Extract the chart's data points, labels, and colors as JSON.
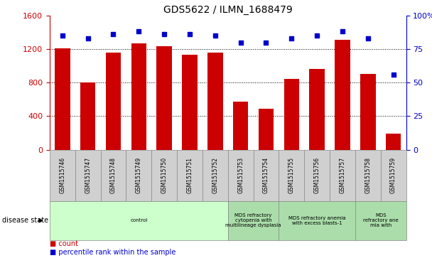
{
  "title": "GDS5622 / ILMN_1688479",
  "samples": [
    "GSM1515746",
    "GSM1515747",
    "GSM1515748",
    "GSM1515749",
    "GSM1515750",
    "GSM1515751",
    "GSM1515752",
    "GSM1515753",
    "GSM1515754",
    "GSM1515755",
    "GSM1515756",
    "GSM1515757",
    "GSM1515758",
    "GSM1515759"
  ],
  "counts": [
    1210,
    800,
    1160,
    1270,
    1230,
    1130,
    1160,
    570,
    490,
    840,
    960,
    1310,
    900,
    190
  ],
  "percentiles": [
    85,
    83,
    86,
    88,
    86,
    86,
    85,
    80,
    80,
    83,
    85,
    88,
    83,
    56
  ],
  "bar_color": "#cc0000",
  "dot_color": "#0000cc",
  "ylim_left": [
    0,
    1600
  ],
  "ylim_right": [
    0,
    100
  ],
  "yticks_left": [
    0,
    400,
    800,
    1200,
    1600
  ],
  "yticks_right": [
    0,
    25,
    50,
    75,
    100
  ],
  "disease_groups": [
    {
      "label": "control",
      "start": 0,
      "end": 7,
      "color": "#ccffcc"
    },
    {
      "label": "MDS refractory\ncytopenia with\nmultilineage dysplasia",
      "start": 7,
      "end": 9,
      "color": "#aaddaa"
    },
    {
      "label": "MDS refractory anemia\nwith excess blasts-1",
      "start": 9,
      "end": 12,
      "color": "#aaddaa"
    },
    {
      "label": "MDS\nrefractory ane\nmia with",
      "start": 12,
      "end": 14,
      "color": "#aaddaa"
    }
  ],
  "disease_state_label": "disease state",
  "legend_count_label": "count",
  "legend_pct_label": "percentile rank within the sample",
  "background_color": "#ffffff",
  "tick_color_left": "#cc0000",
  "tick_color_right": "#0000cc",
  "plot_bg": "#ffffff",
  "sample_box_color": "#d0d0d0",
  "sample_box_edge": "#888888"
}
